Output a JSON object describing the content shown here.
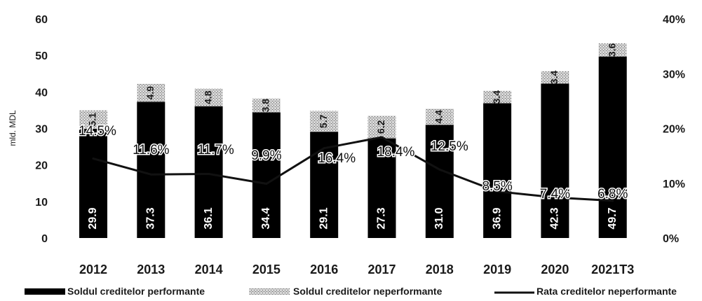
{
  "chart_data": {
    "type": "bar",
    "stacked": true,
    "categories": [
      "2012",
      "2013",
      "2014",
      "2015",
      "2016",
      "2017",
      "2018",
      "2019",
      "2020",
      "2021T3"
    ],
    "series": [
      {
        "name": "Soldul creditelor performante",
        "axis": "left",
        "values": [
          29.9,
          37.3,
          36.1,
          34.4,
          29.1,
          27.3,
          31.0,
          36.9,
          42.3,
          49.7
        ],
        "labels": [
          "29.9",
          "37.3",
          "36.1",
          "34.4",
          "29.1",
          "27.3",
          "31.0",
          "36.9",
          "42.3",
          "49.7"
        ],
        "color": "#000000"
      },
      {
        "name": "Soldul creditelor neperformante",
        "axis": "left",
        "values": [
          5.1,
          4.9,
          4.8,
          3.8,
          5.7,
          6.2,
          4.4,
          3.4,
          3.4,
          3.6
        ],
        "labels": [
          "5.1",
          "4.9",
          "4.8",
          "3.8",
          "5.7",
          "6.2",
          "4.4",
          "3.4",
          "3.4",
          "3.6"
        ],
        "pattern": "dotted-gray"
      },
      {
        "name": "Rata creditelor neperformante",
        "type": "line",
        "axis": "right",
        "values": [
          14.5,
          11.6,
          11.7,
          9.9,
          16.4,
          18.4,
          12.5,
          8.5,
          7.4,
          6.8
        ],
        "labels": [
          "14.5%",
          "11.6%",
          "11.7%",
          "9.9%",
          "16.4%",
          "18.4%",
          "12.5%",
          "8.5%",
          "7.4%",
          "6.8%"
        ],
        "color": "#111111"
      }
    ],
    "ylabel": "mld. MDL",
    "ylim": [
      0,
      60
    ],
    "yticks": [
      "0",
      "10",
      "20",
      "30",
      "40",
      "50",
      "60"
    ],
    "y2lim": [
      0,
      40
    ],
    "y2ticks": [
      "0%",
      "10%",
      "20%",
      "30%",
      "40%"
    ],
    "grid": false,
    "legend_position": "bottom"
  }
}
